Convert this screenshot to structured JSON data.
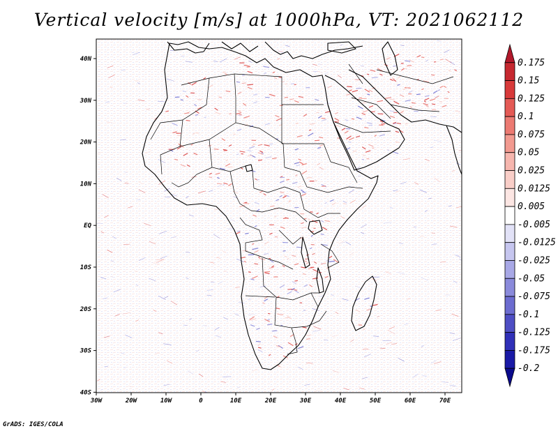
{
  "title": "Vertical velocity [m/s] at 1000hPa, VT: 2021062112",
  "credit": "GrADS: IGES/COLA",
  "map": {
    "region": "Africa, Arabian Peninsula and surrounding seas",
    "lon_range": [
      -30,
      75
    ],
    "lat_range": [
      -40,
      45
    ],
    "x_ticks": [
      "30W",
      "20W",
      "10W",
      "0",
      "10E",
      "20E",
      "30E",
      "40E",
      "50E",
      "60E",
      "70E"
    ],
    "y_ticks": [
      "40N",
      "30N",
      "20N",
      "10N",
      "EQ",
      "10S",
      "20S",
      "30S",
      "40S"
    ]
  },
  "colorbar": {
    "labels": [
      "0.175",
      "0.15",
      "0.125",
      "0.1",
      "0.075",
      "0.05",
      "0.025",
      "0.0125",
      "0.005",
      "-0.005",
      "-0.0125",
      "-0.025",
      "-0.05",
      "-0.075",
      "-0.1",
      "-0.125",
      "-0.175",
      "-0.2"
    ],
    "colors": [
      "#b2182b",
      "#c62830",
      "#d83a3a",
      "#e45a55",
      "#ec7a72",
      "#f29a90",
      "#f6b6ae",
      "#f9cec8",
      "#fce6e3",
      "#ffffff",
      "#e2e2f7",
      "#c6c6ef",
      "#a8a8e6",
      "#8a8adb",
      "#6c6cd0",
      "#4e4ec4",
      "#3030b8",
      "#1a1aa6",
      "#0a0a8c"
    ]
  }
}
